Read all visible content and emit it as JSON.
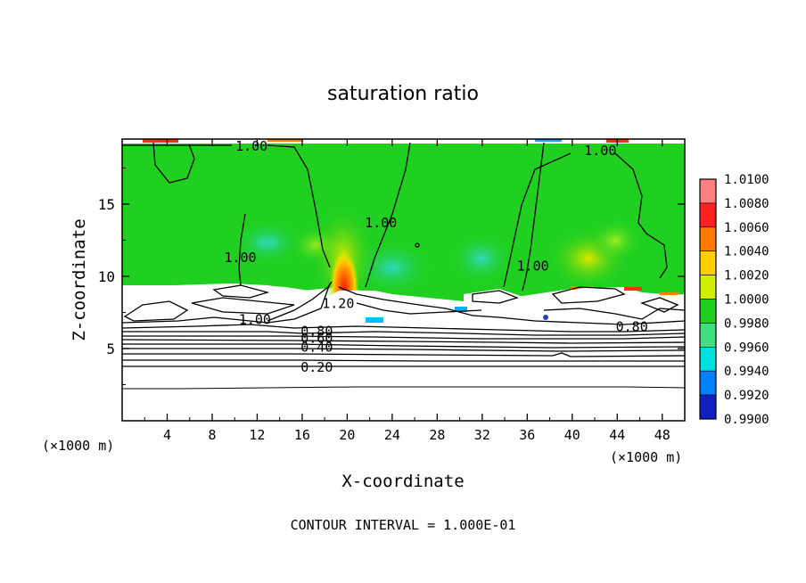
{
  "chart_data": {
    "type": "heatmap",
    "title": "saturation ratio",
    "xlabel": "X-coordinate",
    "ylabel": "Z-coordinate",
    "x_unit": "(×1000 m)",
    "xlim": [
      0,
      50
    ],
    "ylim": [
      0,
      19.5
    ],
    "x_ticks": [
      4,
      8,
      12,
      16,
      20,
      24,
      28,
      32,
      36,
      40,
      44,
      48
    ],
    "y_ticks": [
      5,
      10,
      15
    ],
    "footer": "CONTOUR INTERVAL = 1.000E-01",
    "colorbar": {
      "min": 0.99,
      "max": 1.01,
      "labels": [
        "1.0100",
        "1.0080",
        "1.0060",
        "1.0040",
        "1.0020",
        "1.0000",
        "0.9980",
        "0.9960",
        "0.9940",
        "0.9920",
        "0.9900"
      ],
      "colors": [
        "#ff8080",
        "#ff2020",
        "#ff7a00",
        "#ffd000",
        "#d0f000",
        "#20d020",
        "#40e080",
        "#00e0e0",
        "#0080ff",
        "#1020c0",
        "#4010a0"
      ]
    },
    "contour_labels": [
      {
        "text": "1.00",
        "x": 11.5,
        "z": 19.0
      },
      {
        "text": "1.00",
        "x": 42.5,
        "z": 18.7
      },
      {
        "text": "1.00",
        "x": 23.0,
        "z": 13.7
      },
      {
        "text": "1.00",
        "x": 10.5,
        "z": 11.3
      },
      {
        "text": "1.00",
        "x": 36.5,
        "z": 10.7
      },
      {
        "text": "1.20",
        "x": 19.2,
        "z": 8.1
      },
      {
        "text": "1.00",
        "x": 11.8,
        "z": 7.0
      },
      {
        "text": "0.80",
        "x": 17.3,
        "z": 6.2
      },
      {
        "text": "0.60",
        "x": 17.3,
        "z": 5.7
      },
      {
        "text": "0.40",
        "x": 17.3,
        "z": 5.1
      },
      {
        "text": "0.20",
        "x": 17.3,
        "z": 3.7
      },
      {
        "text": "0.80",
        "x": 45.3,
        "z": 6.5
      }
    ]
  }
}
